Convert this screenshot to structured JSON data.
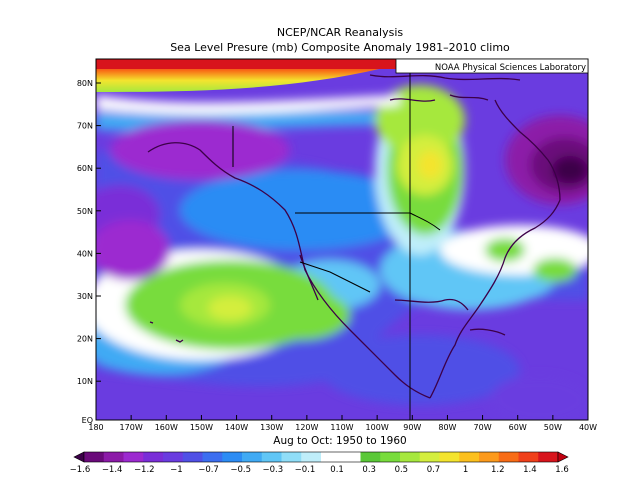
{
  "title_line1": "NCEP/NCAR Reanalysis",
  "title_line2": "Sea Level Presure (mb) Composite Anomaly 1981–2010 climo",
  "credit": "NOAA Physical Sciences Laboratory",
  "period": "Aug to Oct: 1950 to 1960",
  "lat_labels": [
    "80N",
    "70N",
    "60N",
    "50N",
    "40N",
    "30N",
    "20N",
    "10N",
    "EQ"
  ],
  "lon_labels": [
    "180",
    "170W",
    "160W",
    "150W",
    "140W",
    "130W",
    "120W",
    "110W",
    "100W",
    "90W",
    "80W",
    "70W",
    "60W",
    "50W",
    "40W"
  ],
  "colorbar": {
    "tick_labels": [
      "−1.6",
      "−1.4",
      "−1.2",
      "−1",
      "−0.7",
      "−0.5",
      "−0.3",
      "−0.1",
      "0.1",
      "0.3",
      "0.5",
      "0.7",
      "1",
      "1.2",
      "1.4",
      "1.6"
    ],
    "colors": [
      "#3c0048",
      "#6a0a7a",
      "#8c1aa8",
      "#9c2ad0",
      "#7a2ed8",
      "#6a3ce0",
      "#5050e6",
      "#3c6ef0",
      "#2c8cf4",
      "#40aaf4",
      "#60c6f6",
      "#90def8",
      "#bfeefa",
      "#ffffff",
      "#ffffff",
      "#5ac838",
      "#78dc3c",
      "#a6e83e",
      "#d4ee3e",
      "#f4e42e",
      "#fcc01e",
      "#fc9a1c",
      "#f86c16",
      "#f0401a",
      "#d8141c",
      "#c00010"
    ]
  }
}
